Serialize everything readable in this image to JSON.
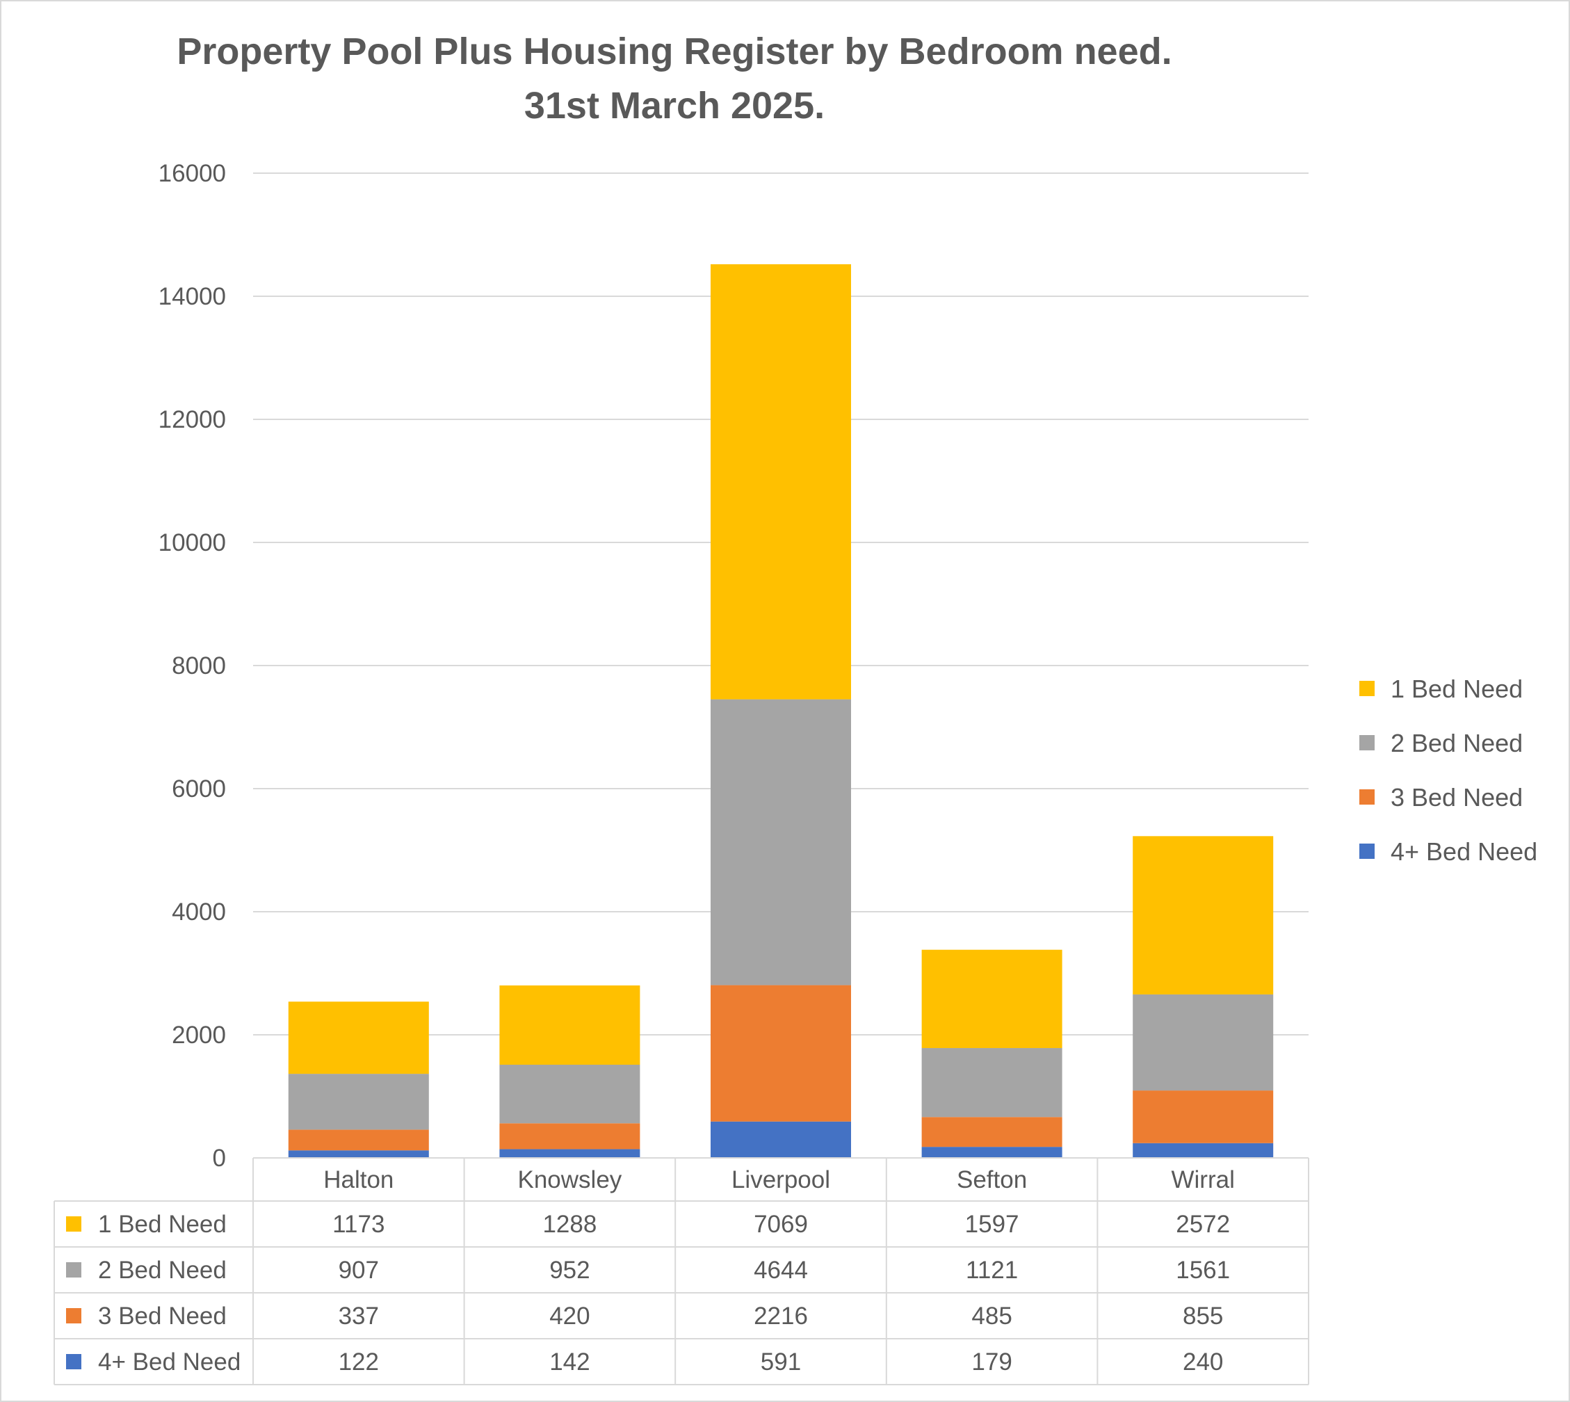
{
  "chart_data": {
    "type": "bar",
    "stacked": true,
    "title": "Property Pool Plus Housing Register by Bedroom need.",
    "subtitle": "31st March 2025.",
    "categories": [
      "Halton",
      "Knowsley",
      "Liverpool",
      "Sefton",
      "Wirral"
    ],
    "series": [
      {
        "name": "1 Bed Need",
        "color": "#FFC000",
        "values": [
          1173,
          1288,
          7069,
          1597,
          2572
        ]
      },
      {
        "name": "2 Bed Need",
        "color": "#A5A5A5",
        "values": [
          907,
          952,
          4644,
          1121,
          1561
        ]
      },
      {
        "name": "3 Bed Need",
        "color": "#ED7D31",
        "values": [
          337,
          420,
          2216,
          485,
          855
        ]
      },
      {
        "name": "4+ Bed Need",
        "color": "#4472C4",
        "values": [
          122,
          142,
          591,
          179,
          240
        ]
      }
    ],
    "stack_order": [
      "4+ Bed Need",
      "3 Bed Need",
      "2 Bed Need",
      "1 Bed Need"
    ],
    "ylim": [
      0,
      16000
    ],
    "yticks": [
      "0",
      "2000",
      "4000",
      "6000",
      "8000",
      "10000",
      "12000",
      "14000",
      "16000"
    ],
    "grid": true,
    "legend_position": "right",
    "data_table": true
  }
}
